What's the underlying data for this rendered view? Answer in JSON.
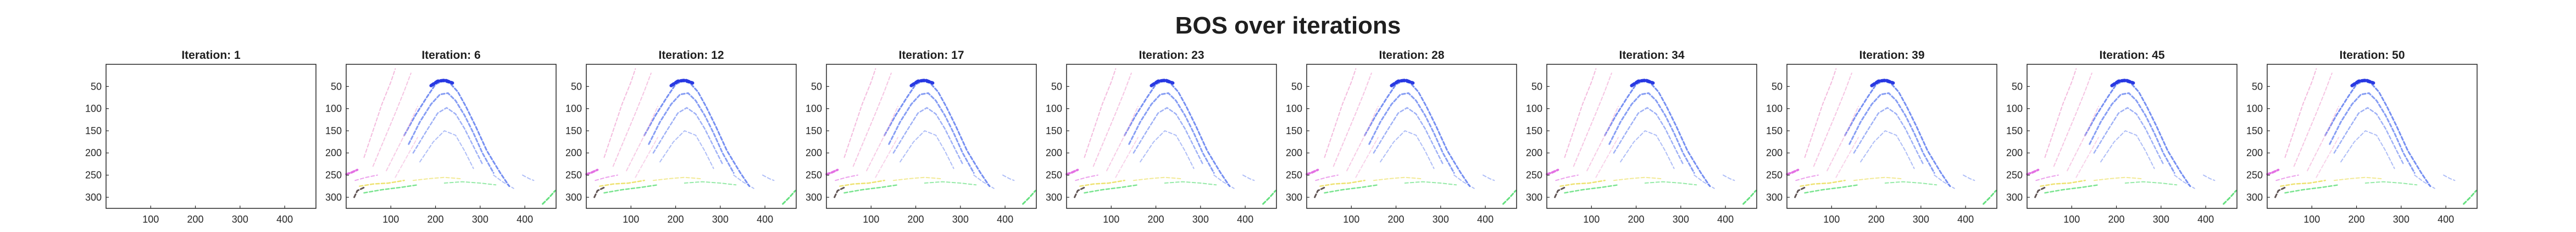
{
  "figure": {
    "title": "BOS over iterations"
  },
  "chart_data": {
    "type": "heatmap",
    "title": "BOS over iterations",
    "xlim": [
      0,
      470
    ],
    "ylim": [
      325,
      0
    ],
    "x_ticks": [
      100,
      200,
      300,
      400
    ],
    "y_ticks": [
      50,
      100,
      150,
      200,
      250,
      300
    ],
    "grid": false,
    "panels": [
      {
        "title": "Iteration: 1",
        "iteration": 1,
        "pattern_visible": false
      },
      {
        "title": "Iteration: 6",
        "iteration": 6,
        "pattern_visible": true
      },
      {
        "title": "Iteration: 12",
        "iteration": 12,
        "pattern_visible": true
      },
      {
        "title": "Iteration: 17",
        "iteration": 17,
        "pattern_visible": true
      },
      {
        "title": "Iteration: 23",
        "iteration": 23,
        "pattern_visible": true
      },
      {
        "title": "Iteration: 28",
        "iteration": 28,
        "pattern_visible": true
      },
      {
        "title": "Iteration: 34",
        "iteration": 34,
        "pattern_visible": true
      },
      {
        "title": "Iteration: 39",
        "iteration": 39,
        "pattern_visible": true
      },
      {
        "title": "Iteration: 45",
        "iteration": 45,
        "pattern_visible": true
      },
      {
        "title": "Iteration: 50",
        "iteration": 50,
        "pattern_visible": true
      }
    ],
    "pattern_colors": {
      "arch_core": "#1f2fe0",
      "arch": "#5f7df0",
      "left_magenta": "#e060e0",
      "pink": "#f0a0d0",
      "yellow": "#e8d840",
      "green": "#40d860",
      "dark": "#3a2a2a"
    }
  }
}
